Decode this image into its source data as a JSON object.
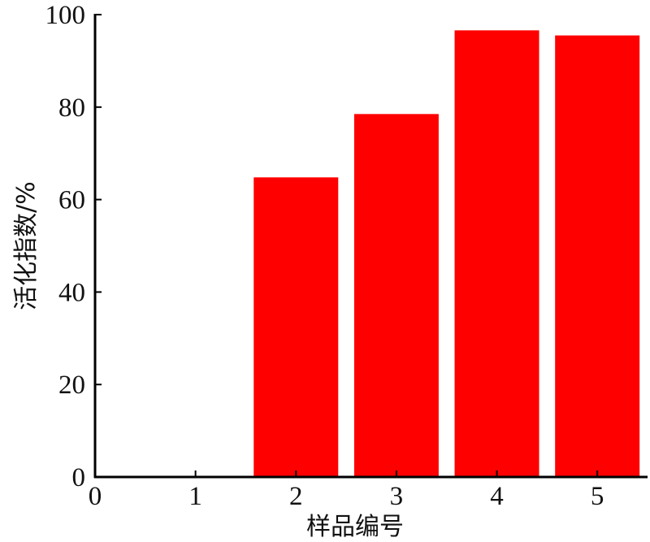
{
  "chart_data": {
    "type": "bar",
    "categories": [
      "1",
      "2",
      "3",
      "4",
      "5"
    ],
    "x": [
      1,
      2,
      3,
      4,
      5
    ],
    "values": [
      0,
      64.8,
      78.5,
      96.6,
      95.5
    ],
    "xlabel": "样品编号",
    "ylabel": "活化指数/%",
    "xlim": [
      0,
      5.5
    ],
    "ylim": [
      0,
      100
    ],
    "xticks": [
      "0",
      "1",
      "2",
      "3",
      "4",
      "5"
    ],
    "yticks": [
      "0",
      "20",
      "40",
      "60",
      "80",
      "100"
    ],
    "grid": false,
    "bar_color": "#ff0000"
  }
}
